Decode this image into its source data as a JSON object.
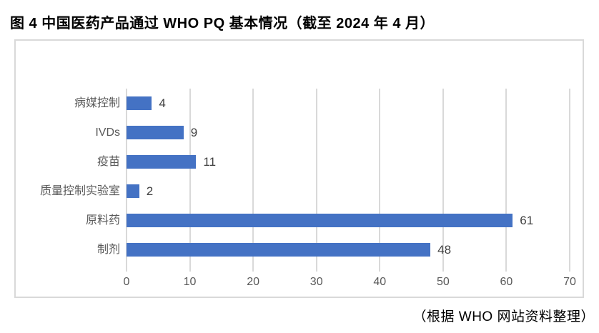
{
  "page": {
    "title": "图 4 中国医药产品通过 WHO PQ 基本情况（截至 2024 年 4 月）",
    "footer": "（根据 WHO 网站资料整理）"
  },
  "colors": {
    "bar": "#4472C4",
    "gridline": "#D9D9D9",
    "frame_border": "#D9D9D9",
    "category_label": "#595959",
    "axis_tick_label": "#595959",
    "value_label": "#404040",
    "title_text": "#000000"
  },
  "chart_data": {
    "type": "bar",
    "orientation": "horizontal",
    "title": "图 4 中国医药产品通过 WHO PQ 基本情况（截至 2024 年 4 月）",
    "source_note": "（根据 WHO 网站资料整理）",
    "categories": [
      "病媒控制",
      "IVDs",
      "疫苗",
      "质量控制实验室",
      "原料药",
      "制剂"
    ],
    "values": [
      4,
      9,
      11,
      2,
      61,
      48
    ],
    "data_labels": [
      "4",
      "9",
      "11",
      "2",
      "61",
      "48"
    ],
    "x_ticks": [
      0,
      10,
      20,
      30,
      40,
      50,
      60,
      70
    ],
    "xlim": [
      0,
      70
    ],
    "xlabel": "",
    "ylabel": "",
    "grid": true,
    "legend": false
  }
}
